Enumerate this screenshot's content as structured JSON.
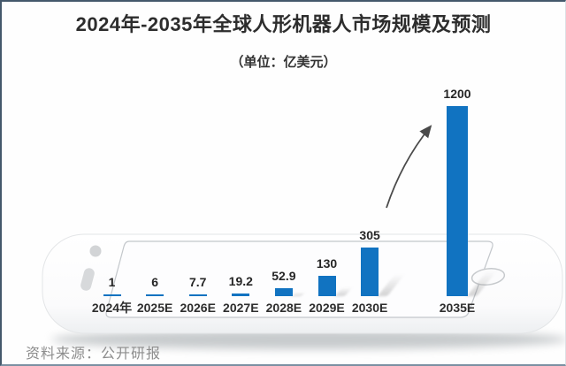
{
  "page": {
    "source": "资料来源：公开研报"
  },
  "chart_data": {
    "type": "bar",
    "title": "2024年-2035年全球人形机器人市场规模及预测",
    "unit_label": "（单位：亿美元）",
    "categories": [
      "2024年",
      "2025E",
      "2026E",
      "2027E",
      "2028E",
      "2029E",
      "2030E",
      "2035E"
    ],
    "values": [
      1,
      6,
      7.7,
      19.2,
      52.9,
      130,
      305,
      1200
    ],
    "xlabel": "",
    "ylabel": "",
    "ylim": [
      0,
      1300
    ],
    "grid": false,
    "legend": false,
    "bar_color": "#1173c1",
    "value_label_color": "#262626",
    "annotation": {
      "type": "growth-arrow",
      "from_category": "2030E",
      "to_category": "2035E"
    },
    "background_decoration": "smartphone-illustration"
  }
}
